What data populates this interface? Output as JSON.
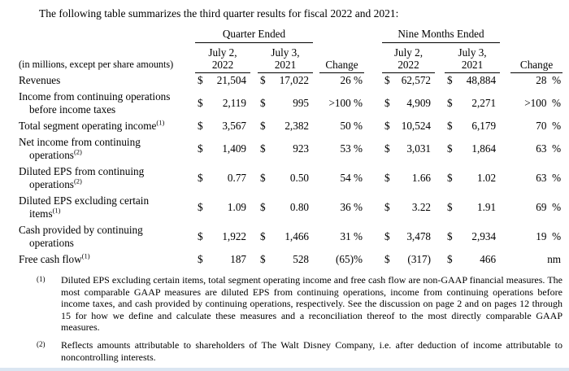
{
  "page": {
    "intro_text": "The following table summarizes the third quarter results for fiscal 2022 and 2021:"
  },
  "table": {
    "corner_label": "(in millions, except per share amounts)",
    "currency_symbol": "$",
    "groups": {
      "quarter": "Quarter Ended",
      "nine_months": "Nine Months Ended"
    },
    "columns": {
      "col2022": [
        "July 2,",
        "2022"
      ],
      "col2021": [
        "July 3,",
        "2021"
      ],
      "change": "Change"
    },
    "rows": [
      {
        "label_lines": [
          "Revenues"
        ],
        "footnote_ref": "",
        "values": [
          "21,504",
          "17,022",
          "62,572",
          "48,884"
        ],
        "changes": [
          "26 %",
          "28  %"
        ]
      },
      {
        "label_lines": [
          "Income from continuing operations",
          "before income taxes"
        ],
        "footnote_ref": "",
        "values": [
          "2,119",
          "995",
          "4,909",
          "2,271"
        ],
        "changes": [
          ">100 %",
          ">100  %"
        ]
      },
      {
        "label_lines": [
          "Total segment operating income"
        ],
        "footnote_ref": "(1)",
        "values": [
          "3,567",
          "2,382",
          "10,524",
          "6,179"
        ],
        "changes": [
          "50 %",
          "70  %"
        ]
      },
      {
        "label_lines": [
          "Net income from continuing",
          "operations"
        ],
        "footnote_ref": "(2)",
        "values": [
          "1,409",
          "923",
          "3,031",
          "1,864"
        ],
        "changes": [
          "53 %",
          "63  %"
        ]
      },
      {
        "label_lines": [
          "Diluted EPS from continuing",
          "operations"
        ],
        "footnote_ref": "(2)",
        "values": [
          "0.77",
          "0.50",
          "1.66",
          "1.02"
        ],
        "changes": [
          "54 %",
          "63  %"
        ]
      },
      {
        "label_lines": [
          "Diluted EPS excluding certain",
          "items"
        ],
        "footnote_ref": "(1)",
        "values": [
          "1.09",
          "0.80",
          "3.22",
          "1.91"
        ],
        "changes": [
          "36 %",
          "69  %"
        ]
      },
      {
        "label_lines": [
          "Cash provided by continuing",
          "operations"
        ],
        "footnote_ref": "",
        "values": [
          "1,922",
          "1,466",
          "3,478",
          "2,934"
        ],
        "changes": [
          "31 %",
          "19  %"
        ]
      },
      {
        "label_lines": [
          "Free cash flow"
        ],
        "footnote_ref": "(1)",
        "values": [
          "187",
          "528",
          "(317)",
          "466"
        ],
        "changes": [
          "(65)%",
          "nm"
        ]
      }
    ]
  },
  "footnotes": [
    {
      "marker": "(1)",
      "text": "Diluted EPS excluding certain items, total segment operating income and free cash flow are non-GAAP financial measures. The most comparable GAAP measures are diluted EPS from continuing operations, income from continuing operations before income taxes, and cash provided by continuing operations, respectively. See the discussion on page 2 and on pages 12 through 15 for how we define and calculate these measures and a reconciliation thereof to the most directly comparable GAAP measures."
    },
    {
      "marker": "(2)",
      "text": "Reflects amounts attributable to shareholders of The Walt Disney Company, i.e. after deduction of income attributable to noncontrolling interests."
    }
  ]
}
